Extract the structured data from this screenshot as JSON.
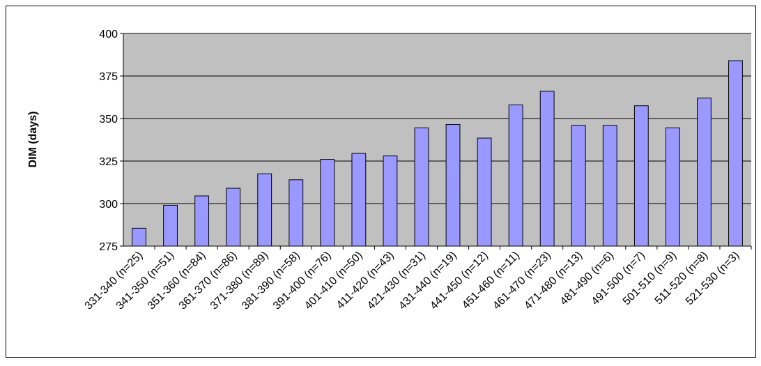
{
  "chart_data": {
    "type": "bar",
    "y_label": "DIM (days)",
    "categories": [
      "331-340 (n=25)",
      "341-350 (n=51)",
      "351-360 (n=84)",
      "361-370 (n=86)",
      "371-380 (n=89)",
      "381-390 (n=58)",
      "391-400 (n=76)",
      "401-410 (n=50)",
      "411-420 (n=43)",
      "421-430 (n=31)",
      "431-440 (n=19)",
      "441-450 (n=12)",
      "451-460 (n=11)",
      "461-470 (n=23)",
      "471-480 (n=13)",
      "481-490 (n=6)",
      "491-500 (n=7)",
      "501-510 (n=9)",
      "511-520 (n=8)",
      "521-530 (n=3)"
    ],
    "values": [
      285.5,
      299,
      304.5,
      309,
      317.5,
      314,
      326,
      329.5,
      328,
      344.5,
      346.5,
      338.5,
      358,
      366,
      346,
      346,
      357.5,
      344.5,
      362,
      384
    ],
    "color": "#9999ff",
    "plot_background": "#c0c0c0",
    "ylim": [
      275,
      400
    ],
    "yticks": [
      275,
      300,
      325,
      350,
      375,
      400
    ],
    "grid": true
  }
}
